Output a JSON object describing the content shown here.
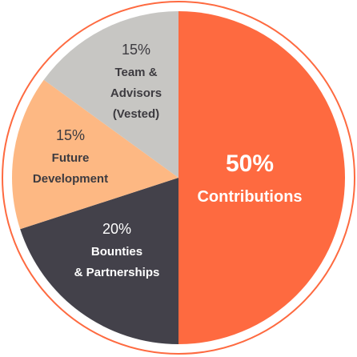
{
  "chart_data": {
    "type": "pie",
    "slices": [
      {
        "percent_label": "50%",
        "label_lines": [
          "Contributions"
        ],
        "value": 50,
        "color": "#fe6a40",
        "text_color": "#ffffff"
      },
      {
        "percent_label": "20%",
        "label_lines": [
          "Bounties",
          "& Partnerships"
        ],
        "value": 20,
        "color": "#43414a",
        "text_color": "#ffffff"
      },
      {
        "percent_label": "15%",
        "label_lines": [
          "Future",
          "Development"
        ],
        "value": 15,
        "color": "#fdb883",
        "text_color": "#3d3b40"
      },
      {
        "percent_label": "15%",
        "label_lines": [
          "Team &",
          "Advisors",
          "(Vested)"
        ],
        "value": 15,
        "color": "#c7c6c3",
        "text_color": "#3d3b40"
      }
    ],
    "ring_color": "#fe6a40"
  }
}
